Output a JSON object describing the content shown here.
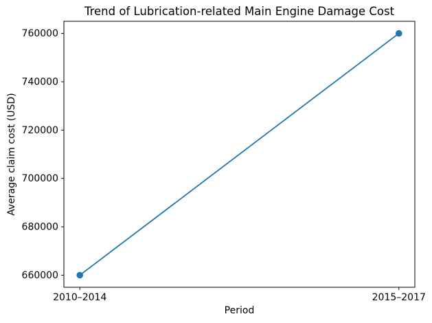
{
  "chart_data": {
    "type": "line",
    "title": "Trend of Lubrication-related Main Engine Damage Cost",
    "xlabel": "Period",
    "ylabel": "Average claim cost (USD)",
    "categories": [
      "2010–2014",
      "2015–2017"
    ],
    "values": [
      660000,
      760000
    ],
    "yticks": [
      660000,
      680000,
      700000,
      720000,
      740000,
      760000
    ],
    "ylim": [
      655000,
      765000
    ],
    "grid": false,
    "legend_position": "none",
    "line_color": "#1f77b4",
    "marker": "circle",
    "background_color": "#ffffff",
    "spine_color": "#000000",
    "text_color": "#000000"
  }
}
